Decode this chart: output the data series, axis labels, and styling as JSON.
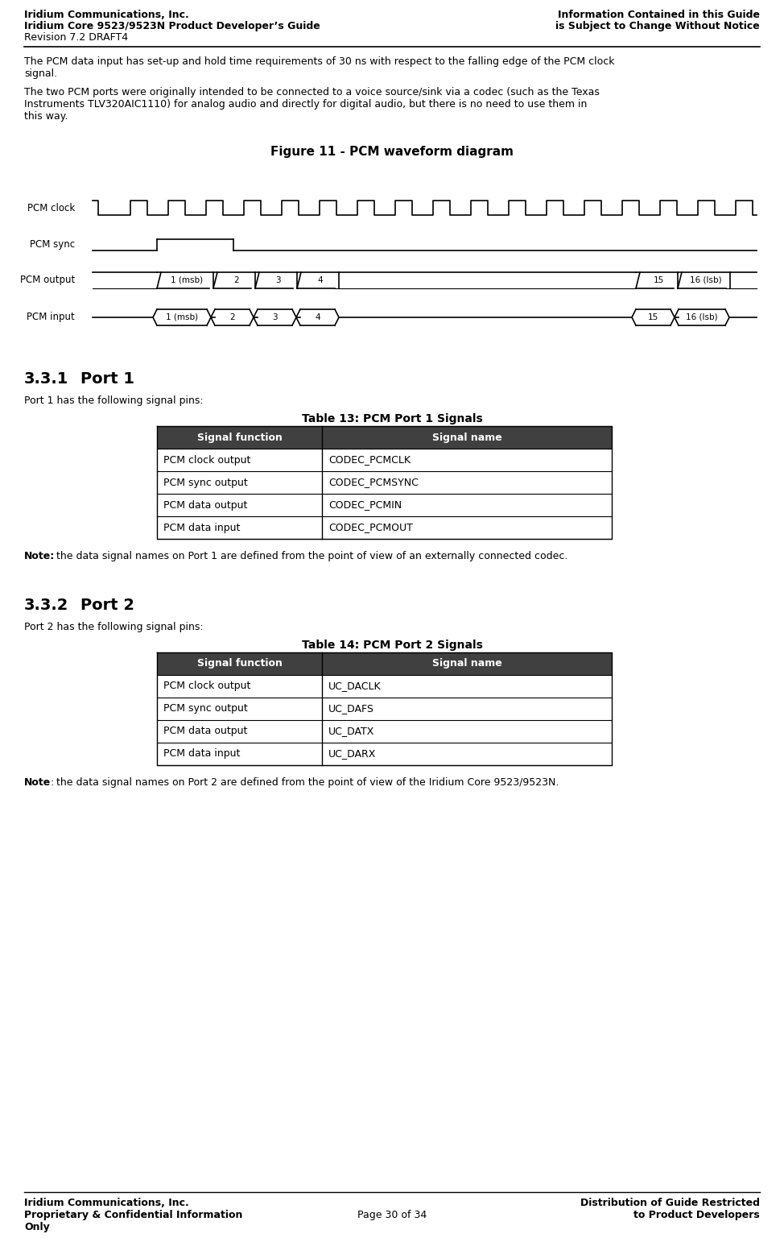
{
  "bg_color": "#ffffff",
  "header_left_line1": "Iridium Communications, Inc.",
  "header_left_line2": "Iridium Core 9523/9523N Product Developer’s Guide",
  "header_left_line3": "Revision 7.2 DRAFT4",
  "header_right_line1": "Information Contained in this Guide",
  "header_right_line2": "is Subject to Change Without Notice",
  "footer_left_line1": "Iridium Communications, Inc.",
  "footer_left_line2": "Proprietary & Confidential Information",
  "footer_left_line3": "Only",
  "footer_center": "Page 30 of 34",
  "footer_right_line1": "Distribution of Guide Restricted",
  "footer_right_line2": "to Product Developers",
  "body_para1": "The PCM data input has set-up and hold time requirements of 30 ns with respect to the falling edge of the PCM clock signal.",
  "body_para2": "The two PCM ports were originally intended to be connected to a voice source/sink via a codec (such as the Texas Instruments TLV320AIC1110) for analog audio and directly for digital audio, but there is no need to use them in this way.",
  "figure_title": "Figure 11 - PCM waveform diagram",
  "section_331_body": "Port 1 has the following signal pins:",
  "table13_title": "Table 13: PCM Port 1 Signals",
  "table13_headers": [
    "Signal function",
    "Signal name"
  ],
  "table13_rows": [
    [
      "PCM clock output",
      "CODEC_PCMCLK"
    ],
    [
      "PCM sync output",
      "CODEC_PCMSYNC"
    ],
    [
      "PCM data output",
      "CODEC_PCMIN"
    ],
    [
      "PCM data input",
      "CODEC_PCMOUT"
    ]
  ],
  "note1": "Note: the data signal names on Port 1 are defined from the point of view of an externally connected codec.",
  "section_332_body": "Port 2 has the following signal pins:",
  "table14_title": "Table 14: PCM Port 2 Signals",
  "table14_headers": [
    "Signal function",
    "Signal name"
  ],
  "table14_rows": [
    [
      "PCM clock output",
      "UC_DACLK"
    ],
    [
      "PCM sync output",
      "UC_DAFS"
    ],
    [
      "PCM data output",
      "UC_DATX"
    ],
    [
      "PCM data input",
      "UC_DARX"
    ]
  ],
  "note2": "Note: the data signal names on Port 2 are defined from the point of view of the Iridium Core 9523/9523N.",
  "table_header_bg": "#404040",
  "table_header_fg": "#ffffff",
  "table_row_bg": "#ffffff",
  "table_border": "#000000"
}
